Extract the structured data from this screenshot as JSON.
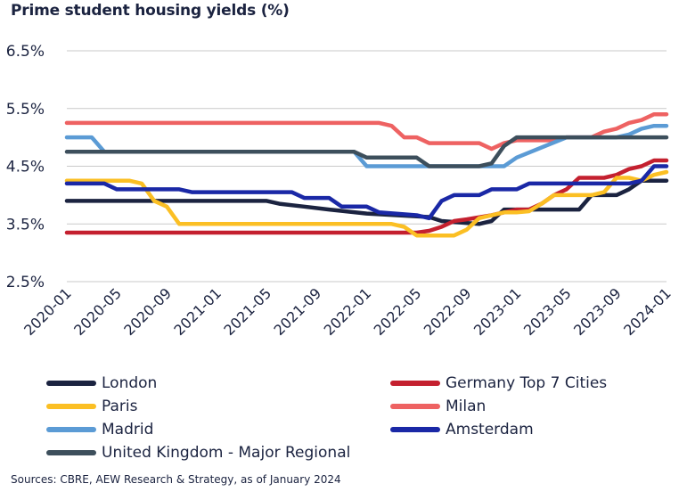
{
  "chart_data": {
    "type": "line",
    "title": "Prime student housing yields (%)",
    "xlabel": "",
    "ylabel": "",
    "ylim": [
      2.5,
      6.5
    ],
    "y_ticks": [
      "2.5%",
      "3.5%",
      "4.5%",
      "5.5%",
      "6.5%"
    ],
    "y_tick_values": [
      2.5,
      3.5,
      4.5,
      5.5,
      6.5
    ],
    "x_ticks": [
      "2020-01",
      "2020-05",
      "2020-09",
      "2021-01",
      "2021-05",
      "2021-09",
      "2022-01",
      "2022-05",
      "2022-09",
      "2023-01",
      "2023-05",
      "2023-09",
      "2024-01"
    ],
    "x_tick_indices": [
      0,
      4,
      8,
      12,
      16,
      20,
      24,
      28,
      32,
      36,
      40,
      44,
      48
    ],
    "x_range": [
      0,
      48
    ],
    "grid": "horizontal",
    "legend_position": "bottom",
    "series": [
      {
        "name": "London",
        "color": "#1b2340",
        "points": [
          [
            0,
            3.9
          ],
          [
            16,
            3.9
          ],
          [
            17,
            3.85
          ],
          [
            19,
            3.8
          ],
          [
            21,
            3.75
          ],
          [
            24,
            3.68
          ],
          [
            29,
            3.62
          ],
          [
            30,
            3.55
          ],
          [
            33,
            3.5
          ],
          [
            34,
            3.55
          ],
          [
            35,
            3.75
          ],
          [
            40,
            3.75
          ],
          [
            41,
            3.75
          ],
          [
            42,
            4.0
          ],
          [
            43,
            4.0
          ],
          [
            44,
            4.0
          ],
          [
            45,
            4.1
          ],
          [
            46,
            4.25
          ],
          [
            48,
            4.25
          ]
        ]
      },
      {
        "name": "Germany Top 7 Cities",
        "color": "#c4202f",
        "points": [
          [
            0,
            3.35
          ],
          [
            28,
            3.35
          ],
          [
            29,
            3.38
          ],
          [
            30,
            3.45
          ],
          [
            31,
            3.55
          ],
          [
            32,
            3.58
          ],
          [
            34,
            3.65
          ],
          [
            36,
            3.75
          ],
          [
            37,
            3.75
          ],
          [
            38,
            3.85
          ],
          [
            39,
            4.0
          ],
          [
            40,
            4.1
          ],
          [
            41,
            4.3
          ],
          [
            43,
            4.3
          ],
          [
            44,
            4.35
          ],
          [
            45,
            4.45
          ],
          [
            46,
            4.5
          ],
          [
            47,
            4.6
          ],
          [
            48,
            4.6
          ]
        ]
      },
      {
        "name": "Paris",
        "color": "#fbbf24",
        "points": [
          [
            0,
            4.25
          ],
          [
            5,
            4.25
          ],
          [
            6,
            4.2
          ],
          [
            7,
            3.9
          ],
          [
            8,
            3.8
          ],
          [
            9,
            3.5
          ],
          [
            10,
            3.5
          ],
          [
            26,
            3.5
          ],
          [
            27,
            3.45
          ],
          [
            28,
            3.3
          ],
          [
            31,
            3.3
          ],
          [
            32,
            3.4
          ],
          [
            33,
            3.6
          ],
          [
            35,
            3.7
          ],
          [
            36,
            3.7
          ],
          [
            37,
            3.72
          ],
          [
            38,
            3.85
          ],
          [
            39,
            4.0
          ],
          [
            40,
            4.0
          ],
          [
            41,
            4.0
          ],
          [
            42,
            4.0
          ],
          [
            43,
            4.05
          ],
          [
            44,
            4.3
          ],
          [
            45,
            4.3
          ],
          [
            46,
            4.25
          ],
          [
            47,
            4.35
          ],
          [
            48,
            4.4
          ]
        ]
      },
      {
        "name": "Milan",
        "color": "#ee6262",
        "points": [
          [
            0,
            5.25
          ],
          [
            25,
            5.25
          ],
          [
            26,
            5.2
          ],
          [
            27,
            5.0
          ],
          [
            28,
            5.0
          ],
          [
            29,
            4.9
          ],
          [
            33,
            4.9
          ],
          [
            34,
            4.8
          ],
          [
            35,
            4.9
          ],
          [
            36,
            4.95
          ],
          [
            37,
            4.95
          ],
          [
            39,
            4.95
          ],
          [
            40,
            5.0
          ],
          [
            42,
            5.0
          ],
          [
            43,
            5.1
          ],
          [
            44,
            5.15
          ],
          [
            45,
            5.25
          ],
          [
            46,
            5.3
          ],
          [
            47,
            5.4
          ],
          [
            48,
            5.4
          ]
        ]
      },
      {
        "name": "Madrid",
        "color": "#5b9bd5",
        "points": [
          [
            0,
            5.0
          ],
          [
            2,
            5.0
          ],
          [
            3,
            4.75
          ],
          [
            5,
            4.75
          ],
          [
            23,
            4.75
          ],
          [
            24,
            4.5
          ],
          [
            34,
            4.5
          ],
          [
            35,
            4.5
          ],
          [
            36,
            4.65
          ],
          [
            40,
            5.0
          ],
          [
            44,
            5.0
          ],
          [
            45,
            5.05
          ],
          [
            46,
            5.15
          ],
          [
            47,
            5.2
          ],
          [
            48,
            5.2
          ]
        ]
      },
      {
        "name": "Amsterdam",
        "color": "#1a28a6",
        "points": [
          [
            0,
            4.2
          ],
          [
            3,
            4.2
          ],
          [
            4,
            4.1
          ],
          [
            9,
            4.1
          ],
          [
            10,
            4.05
          ],
          [
            18,
            4.05
          ],
          [
            19,
            3.95
          ],
          [
            21,
            3.95
          ],
          [
            22,
            3.8
          ],
          [
            24,
            3.8
          ],
          [
            25,
            3.7
          ],
          [
            28,
            3.65
          ],
          [
            29,
            3.6
          ],
          [
            30,
            3.9
          ],
          [
            31,
            4.0
          ],
          [
            33,
            4.0
          ],
          [
            34,
            4.1
          ],
          [
            36,
            4.1
          ],
          [
            37,
            4.2
          ],
          [
            44,
            4.2
          ],
          [
            45,
            4.2
          ],
          [
            46,
            4.25
          ],
          [
            47,
            4.5
          ],
          [
            48,
            4.5
          ]
        ]
      },
      {
        "name": "United Kingdom - Major Regional",
        "color": "#3d4f5c",
        "points": [
          [
            0,
            4.75
          ],
          [
            23,
            4.75
          ],
          [
            24,
            4.65
          ],
          [
            28,
            4.65
          ],
          [
            29,
            4.5
          ],
          [
            33,
            4.5
          ],
          [
            34,
            4.55
          ],
          [
            35,
            4.85
          ],
          [
            36,
            5.0
          ],
          [
            48,
            5.0
          ]
        ]
      }
    ]
  },
  "legend": {
    "items": [
      {
        "label": "London",
        "color": "#1b2340"
      },
      {
        "label": "Germany Top 7 Cities",
        "color": "#c4202f"
      },
      {
        "label": "Paris",
        "color": "#fbbf24"
      },
      {
        "label": "Milan",
        "color": "#ee6262"
      },
      {
        "label": "Madrid",
        "color": "#5b9bd5"
      },
      {
        "label": "Amsterdam",
        "color": "#1a28a6"
      },
      {
        "label": "United Kingdom - Major Regional",
        "color": "#3d4f5c"
      }
    ]
  },
  "footer": {
    "source": "Sources: CBRE, AEW Research & Strategy, as of January 2024"
  }
}
